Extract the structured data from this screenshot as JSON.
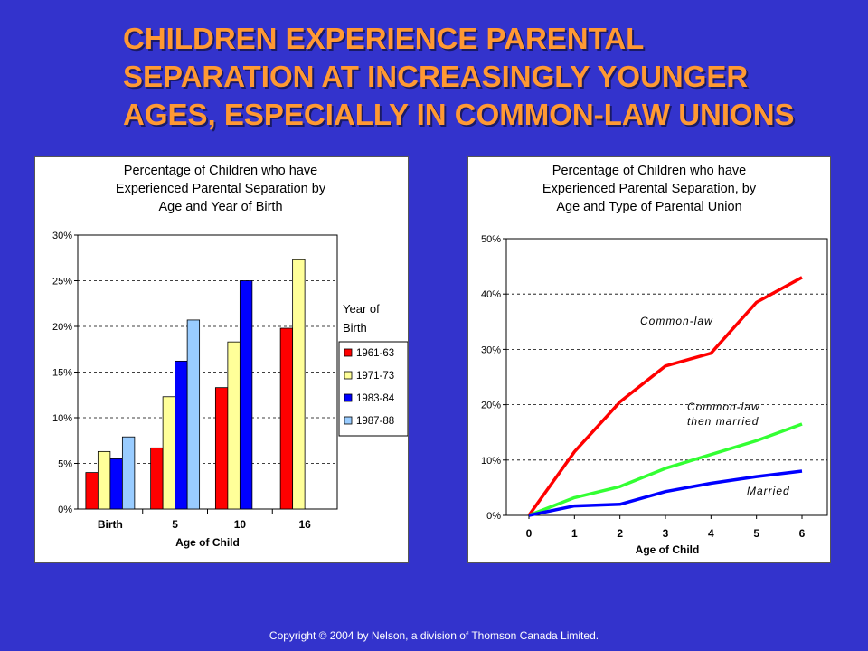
{
  "slide": {
    "title_lines": [
      "CHILDREN EXPERIENCE PARENTAL",
      "SEPARATION AT INCREASINGLY YOUNGER",
      "AGES, ESPECIALLY IN COMMON-LAW UNIONS"
    ],
    "copyright": "Copyright © 2004 by Nelson, a division of Thomson Canada Limited."
  },
  "colors": {
    "background": "#3333CC",
    "title": "#FF9933",
    "red": "#FF0000",
    "yellow": "#FFFF99",
    "blue": "#0000FF",
    "lightblue": "#99CCFF",
    "green": "#33FF33"
  },
  "chart_data": [
    {
      "type": "bar",
      "title_lines": [
        "Percentage of Children who have",
        "Experienced Parental Separation by",
        "Age and Year of Birth"
      ],
      "xlabel": "Age of Child",
      "ylabel": "",
      "categories": [
        "Birth",
        "5",
        "10",
        "16"
      ],
      "ylim": [
        0,
        30
      ],
      "yticks": [
        "0%",
        "5%",
        "10%",
        "15%",
        "20%",
        "25%",
        "30%"
      ],
      "grid": true,
      "legend_title_lines": [
        "Year of",
        "Birth"
      ],
      "legend_placement": "right",
      "series": [
        {
          "name": "1961-63",
          "color": "#FF0000",
          "values": [
            4.0,
            6.7,
            13.3,
            19.8
          ]
        },
        {
          "name": "1971-73",
          "color": "#FFFF99",
          "values": [
            6.3,
            12.3,
            18.3,
            27.3
          ]
        },
        {
          "name": "1983-84",
          "color": "#0000FF",
          "values": [
            5.5,
            16.2,
            25.0,
            null
          ]
        },
        {
          "name": "1987-88",
          "color": "#99CCFF",
          "values": [
            7.9,
            20.7,
            null,
            null
          ]
        }
      ]
    },
    {
      "type": "line",
      "title_lines": [
        "Percentage of Children who have",
        "Experienced Parental Separation, by",
        "Age and Type of Parental Union"
      ],
      "xlabel": "Age of Child",
      "ylabel": "",
      "x": [
        0,
        1,
        2,
        3,
        4,
        5,
        6
      ],
      "xticks": [
        "0",
        "1",
        "2",
        "3",
        "4",
        "5",
        "6"
      ],
      "ylim": [
        0,
        50
      ],
      "yticks": [
        "0%",
        "10%",
        "20%",
        "30%",
        "40%",
        "50%"
      ],
      "grid": true,
      "series": [
        {
          "name": "Common-law",
          "label_lines": [
            "Common-law"
          ],
          "color": "#FF0000",
          "values": [
            0,
            11.5,
            20.5,
            27.0,
            29.3,
            38.5,
            43.0
          ]
        },
        {
          "name": "Common-law then married",
          "label_lines": [
            "Common-law",
            "then married"
          ],
          "color": "#33FF33",
          "values": [
            0,
            3.2,
            5.2,
            8.5,
            11.0,
            13.5,
            16.5
          ]
        },
        {
          "name": "Married",
          "label_lines": [
            "Married"
          ],
          "color": "#0000FF",
          "values": [
            0,
            1.7,
            2.0,
            4.3,
            5.8,
            7.0,
            8.0
          ]
        }
      ]
    }
  ]
}
